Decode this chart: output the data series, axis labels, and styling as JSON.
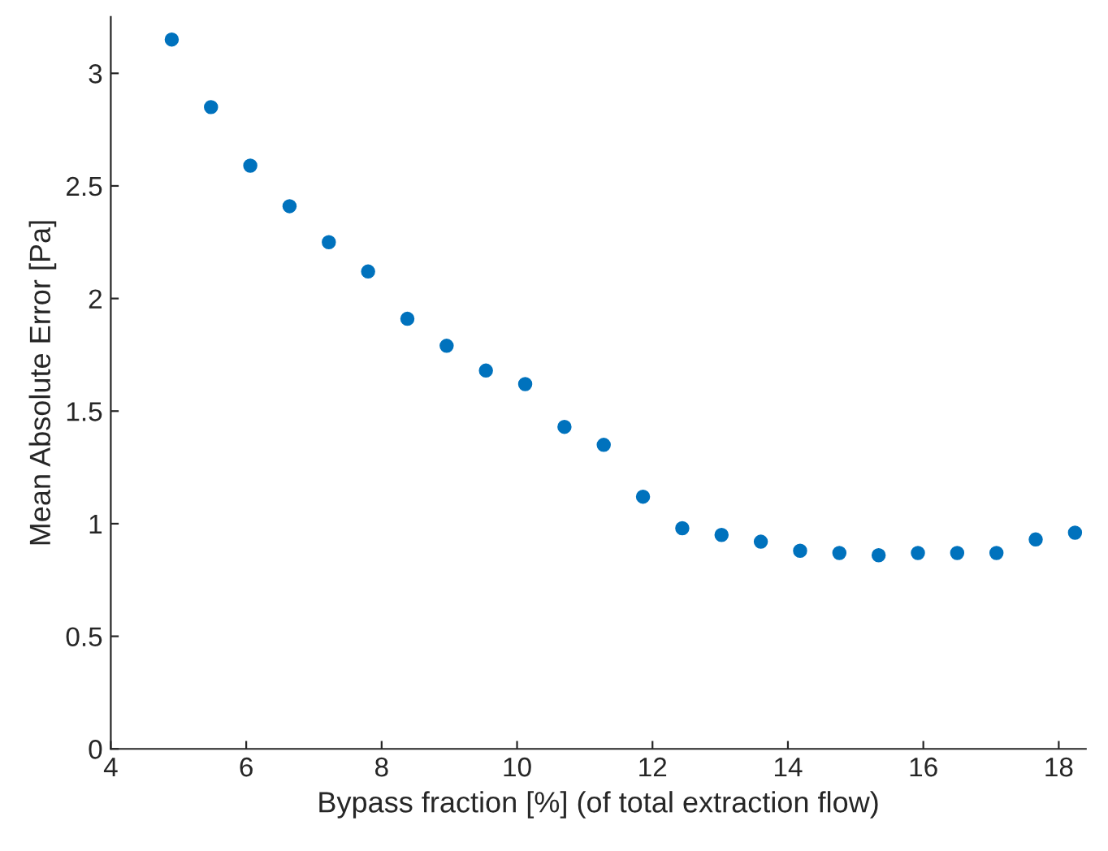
{
  "chart_data": {
    "type": "scatter",
    "xlabel": "Bypass fraction [%] (of total extraction flow)",
    "ylabel": "Mean Absolute Error [Pa]",
    "x": [
      4.9,
      5.48,
      6.06,
      6.64,
      7.22,
      7.8,
      8.38,
      8.96,
      9.54,
      10.12,
      10.7,
      11.28,
      11.86,
      12.44,
      13.02,
      13.6,
      14.18,
      14.76,
      15.34,
      15.92,
      16.5,
      17.08,
      17.66,
      18.24
    ],
    "series": [
      {
        "color": "#0072bd",
        "values": [
          3.15,
          2.85,
          2.59,
          2.41,
          2.25,
          2.12,
          1.91,
          1.79,
          1.68,
          1.62,
          1.43,
          1.35,
          1.12,
          0.98,
          0.95,
          0.92,
          0.88,
          0.87,
          0.86,
          0.87,
          0.87,
          0.87,
          0.93,
          0.96
        ]
      }
    ],
    "xlim": [
      4,
      18.4
    ],
    "ylim": [
      0,
      3.25
    ],
    "xticks": [
      4,
      6,
      8,
      10,
      12,
      14,
      16,
      18
    ],
    "yticks": [
      0,
      0.5,
      1,
      1.5,
      2,
      2.5,
      3
    ],
    "marker": "circle",
    "grid": false,
    "legend": false
  }
}
